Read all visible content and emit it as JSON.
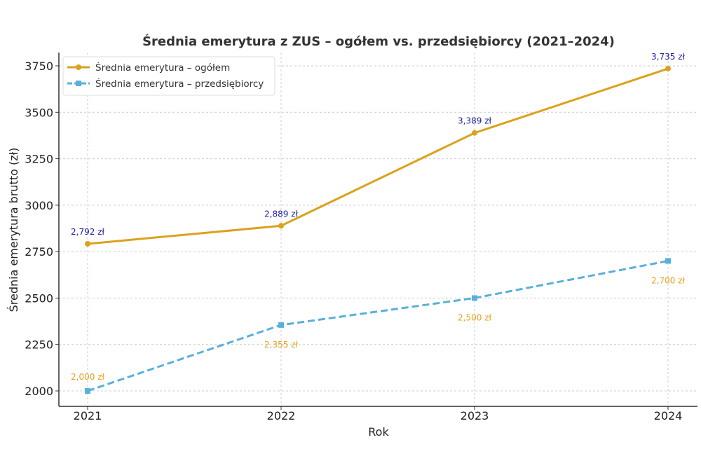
{
  "chart_data": {
    "type": "line",
    "title": "Średnia emerytura z ZUS – ogółem vs. przedsiębiorcy (2021–2024)",
    "xlabel": "Rok",
    "ylabel": "Średnia emerytura brutto (zł)",
    "categories": [
      "2021",
      "2022",
      "2023",
      "2024"
    ],
    "yticks": [
      2000,
      2250,
      2500,
      2750,
      3000,
      3250,
      3500,
      3750
    ],
    "ylim": [
      1910,
      3820
    ],
    "grid": true,
    "legend_position": "top-left",
    "series": [
      {
        "name": "Średnia emerytura – ogółem",
        "values": [
          2792,
          2889,
          3389,
          3735
        ],
        "labels": [
          "2,792 zł",
          "2,889 zł",
          "3,389 zł",
          "3,735 zł"
        ],
        "color": "#DAA21E",
        "label_color": "#1c1ca0",
        "line_style": "solid",
        "marker": "circle"
      },
      {
        "name": "Średnia emerytura – przedsiębiorcy",
        "values": [
          2000,
          2355,
          2500,
          2700
        ],
        "labels": [
          "2,000 zł",
          "2,355 zł",
          "2,500 zł",
          "2,700 zł"
        ],
        "color": "#5AB0DA",
        "label_color": "#E8A020",
        "line_style": "dashed",
        "marker": "square"
      }
    ]
  }
}
